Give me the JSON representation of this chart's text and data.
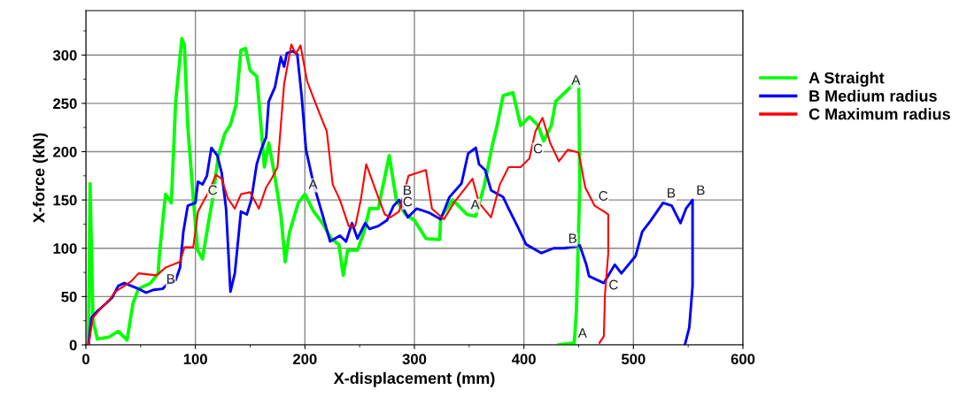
{
  "chart_data": {
    "type": "line",
    "xlabel": "X-displacement (mm)",
    "ylabel": "X-force (kN)",
    "xlim": [
      0,
      600
    ],
    "xticks": [
      0,
      100,
      200,
      300,
      400,
      500,
      600
    ],
    "ylim": [
      0,
      346
    ],
    "yticks": [
      0,
      50,
      100,
      150,
      200,
      250,
      300
    ],
    "grid": true,
    "legend": "right",
    "marker": "none",
    "line_style": "solid",
    "series": [
      {
        "name": "A Straight",
        "color": "#00ff00",
        "x": [
          2.4,
          3.8,
          6.5,
          10.5,
          21,
          29.5,
          37.6,
          43,
          48,
          59,
          66,
          67,
          72.7,
          78,
          82,
          87.6,
          90,
          93,
          98,
          102,
          106.5,
          110.5,
          116,
          121,
          127,
          132,
          137,
          141.6,
          145.7,
          150,
          156,
          159,
          163,
          167,
          172,
          178,
          182,
          186,
          194,
          200,
          208,
          216,
          224,
          231,
          235,
          239,
          248,
          254,
          259,
          267,
          277,
          283.5,
          292,
          300,
          310.5,
          323,
          324,
          335,
          348,
          356,
          364,
          371,
          375.5,
          381,
          390,
          397,
          405,
          413,
          418,
          425,
          429,
          440,
          448,
          450,
          451,
          448,
          446,
          432
        ],
        "values": [
          0,
          167,
          25,
          6,
          8,
          14,
          5,
          43,
          58,
          64,
          74,
          92,
          156,
          147,
          252,
          317,
          310,
          227,
          153,
          98,
          89,
          117,
          153,
          196,
          219,
          228,
          248,
          305,
          307,
          284,
          278,
          239,
          184,
          209,
          178,
          135,
          86,
          117,
          147,
          156,
          138,
          126,
          110,
          104,
          72,
          98,
          98,
          117,
          141,
          141,
          196,
          150,
          135,
          129,
          110,
          109,
          132,
          150,
          135,
          133,
          166,
          206,
          227,
          258,
          261,
          227,
          236,
          227,
          211,
          227,
          252,
          264,
          273,
          274,
          166,
          37,
          2,
          0
        ]
      },
      {
        "name": "B Medium radius",
        "color": "#0000ff",
        "x": [
          2.4,
          5,
          10.5,
          18.6,
          24,
          29.5,
          35,
          41.6,
          48,
          55,
          62,
          70,
          75.4,
          82,
          86,
          89,
          93,
          100,
          102.4,
          106.5,
          110.5,
          114.6,
          120,
          124,
          128,
          132,
          136,
          141.6,
          147,
          151,
          156,
          160,
          164.6,
          167,
          172.7,
          178,
          181,
          183.5,
          189,
          193,
          197,
          201,
          208,
          216,
          223,
          232,
          237.6,
          243,
          248,
          255,
          259,
          267,
          275,
          281,
          286,
          294,
          302,
          313,
          324,
          332,
          343,
          349,
          356,
          359,
          364.6,
          370,
          381,
          386,
          394,
          402,
          416,
          427,
          437,
          451,
          457,
          459.5,
          473,
          483,
          489,
          502,
          508,
          516,
          527,
          535,
          543,
          548,
          554,
          554,
          551,
          547
        ],
        "values": [
          0,
          28,
          35,
          43,
          49,
          61,
          64,
          61,
          58,
          54,
          57,
          58,
          64,
          67,
          80,
          117,
          144,
          147,
          169,
          166,
          175,
          204,
          196,
          178,
          141,
          55,
          74,
          138,
          135,
          150,
          187,
          202,
          215,
          252,
          267,
          298,
          288,
          302,
          304,
          301,
          258,
          202,
          166,
          135,
          107,
          113,
          107,
          126,
          110,
          126,
          120,
          123,
          129,
          144,
          150,
          132,
          141,
          137,
          130,
          153,
          167,
          198,
          204,
          187,
          181,
          160,
          153,
          141,
          123,
          104,
          95,
          100,
          100,
          103,
          83,
          71,
          64,
          83,
          74,
          92,
          117,
          129,
          147,
          144,
          126,
          141,
          150,
          61,
          18,
          0
        ]
      },
      {
        "name": "C Maximum radius",
        "color": "#ff0000",
        "x": [
          2.4,
          6.5,
          13,
          21,
          26.8,
          35,
          41.6,
          48,
          64.6,
          72.7,
          86,
          90,
          98,
          102.4,
          108,
          113,
          118.6,
          124,
          129.5,
          136,
          141.6,
          150,
          158,
          164.6,
          170,
          175,
          181,
          187.6,
          191.6,
          196,
          202,
          208,
          214.6,
          220,
          225.4,
          232,
          240,
          246,
          251,
          256,
          264.6,
          273,
          278,
          286,
          294.6,
          310.5,
          316,
          327,
          336,
          345,
          353,
          359,
          370,
          378,
          386,
          397,
          405,
          410.5,
          417,
          424,
          432,
          440,
          450,
          456,
          464.6,
          473,
          477,
          477,
          474,
          473,
          469
        ],
        "values": [
          0,
          28,
          37,
          46,
          55,
          61,
          66,
          74,
          72,
          80,
          86,
          101,
          101,
          138,
          150,
          160,
          176,
          172,
          152,
          141,
          156,
          158,
          141,
          163,
          173,
          184,
          270,
          311,
          301,
          310,
          273,
          255,
          236,
          221,
          166,
          150,
          123,
          123,
          150,
          187,
          160,
          135,
          132,
          138,
          175,
          181,
          141,
          130,
          147,
          160,
          172,
          147,
          132,
          166,
          184,
          184,
          193,
          221,
          235,
          209,
          190,
          202,
          199,
          163,
          144,
          138,
          135,
          95,
          52,
          9,
          2
        ]
      }
    ],
    "annotations": [
      {
        "text": "A",
        "x": 200,
        "y": 156
      },
      {
        "text": "A",
        "x": 348,
        "y": 135
      },
      {
        "text": "A",
        "x": 440,
        "y": 264
      },
      {
        "text": "A",
        "x": 446,
        "y": 2
      },
      {
        "text": "B",
        "x": 70,
        "y": 58
      },
      {
        "text": "B",
        "x": 286,
        "y": 150
      },
      {
        "text": "B",
        "x": 437,
        "y": 100
      },
      {
        "text": "B",
        "x": 527,
        "y": 147
      },
      {
        "text": "B",
        "x": 554,
        "y": 150
      },
      {
        "text": "C",
        "x": 108,
        "y": 150
      },
      {
        "text": "C",
        "x": 286,
        "y": 138
      },
      {
        "text": "C",
        "x": 405,
        "y": 193
      },
      {
        "text": "C",
        "x": 464.6,
        "y": 144
      },
      {
        "text": "C",
        "x": 474,
        "y": 52
      }
    ]
  }
}
